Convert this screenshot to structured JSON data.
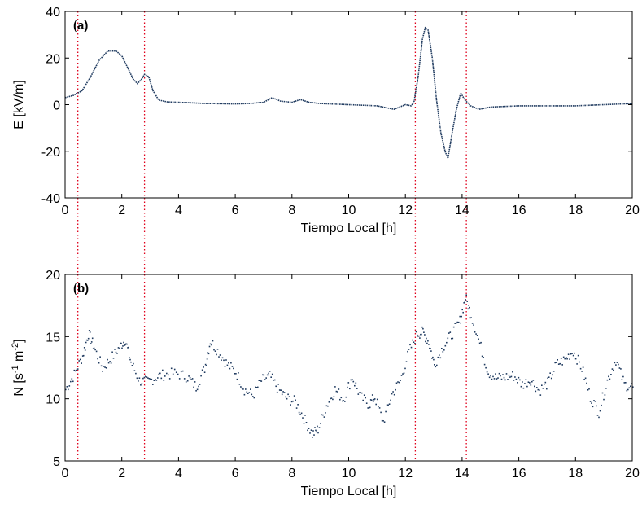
{
  "colors": {
    "data": "#1f3a5f",
    "marker_line": "#e0001b",
    "frame": "#000000"
  },
  "chart_data": [
    {
      "type": "line",
      "panel_label": "(a)",
      "xlabel": "Tiempo Local [h]",
      "ylabel": "E  [kV/m]",
      "xlim": [
        0,
        20
      ],
      "ylim": [
        -40,
        40
      ],
      "xticks": [
        "0",
        "2",
        "4",
        "6",
        "8",
        "10",
        "12",
        "14",
        "16",
        "18",
        "20"
      ],
      "yticks": [
        "-40",
        "-20",
        "0",
        "20",
        "40"
      ],
      "grid": false,
      "series": [
        {
          "x": [
            0,
            0.3,
            0.6,
            0.9,
            1.2,
            1.5,
            1.8,
            2.0,
            2.2,
            2.4,
            2.55,
            2.7,
            2.8,
            2.95,
            3.1,
            3.3,
            3.6,
            4,
            5,
            6,
            6.5,
            7,
            7.3,
            7.6,
            8,
            8.3,
            8.6,
            9,
            10,
            11,
            11.6,
            12,
            12.2,
            12.3,
            12.45,
            12.6,
            12.7,
            12.8,
            12.95,
            13.1,
            13.25,
            13.4,
            13.5,
            13.65,
            13.8,
            13.95,
            14.1,
            14.3,
            14.6,
            15,
            16,
            17,
            18,
            19,
            20
          ],
          "y": [
            3,
            4,
            6,
            12,
            19,
            23,
            23,
            21,
            16,
            11,
            9,
            11,
            13,
            12,
            6,
            2,
            1.2,
            1,
            0.5,
            0.3,
            0.5,
            1,
            3,
            1.5,
            1,
            2.2,
            1,
            0.5,
            0,
            -0.5,
            -2,
            0,
            -0.5,
            1,
            12,
            28,
            33,
            32,
            20,
            2,
            -12,
            -20,
            -23,
            -12,
            -2,
            5,
            2,
            -0.5,
            -2,
            -1,
            -0.5,
            -0.5,
            -0.5,
            0,
            0.5
          ]
        }
      ],
      "vertical_markers": [
        0.45,
        2.8,
        12.35,
        14.15
      ]
    },
    {
      "type": "scatter",
      "panel_label": "(b)",
      "xlabel": "Tiempo Local [h]",
      "ylabel_main": "N  [s",
      "ylabel_exp1": "-1",
      "ylabel_mid": " m",
      "ylabel_exp2": "-2",
      "ylabel_end": "]",
      "xlim": [
        0,
        20
      ],
      "ylim": [
        5,
        20
      ],
      "xticks": [
        "0",
        "2",
        "4",
        "6",
        "8",
        "10",
        "12",
        "14",
        "16",
        "18",
        "20"
      ],
      "yticks": [
        "5",
        "10",
        "15",
        "20"
      ],
      "grid": false,
      "series": [
        {
          "x": [
            0,
            0.3,
            0.6,
            0.8,
            1.0,
            1.3,
            1.6,
            1.9,
            2.1,
            2.3,
            2.6,
            2.9,
            3.2,
            3.5,
            3.9,
            4.3,
            4.6,
            4.9,
            5.1,
            5.4,
            5.7,
            6.0,
            6.3,
            6.6,
            6.9,
            7.2,
            7.5,
            7.8,
            8.1,
            8.4,
            8.7,
            8.9,
            9.2,
            9.5,
            9.8,
            10.1,
            10.4,
            10.7,
            10.9,
            11.2,
            11.5,
            11.8,
            12.1,
            12.4,
            12.6,
            12.8,
            13.0,
            13.3,
            13.6,
            13.9,
            14.1,
            14.3,
            14.6,
            14.9,
            15.2,
            15.5,
            15.8,
            16.1,
            16.4,
            16.7,
            17.0,
            17.3,
            17.6,
            17.9,
            18.2,
            18.5,
            18.8,
            19.1,
            19.4,
            19.7,
            20.0
          ],
          "y": [
            10.8,
            12,
            13.5,
            15.3,
            14.2,
            12.5,
            13.3,
            14.2,
            14.8,
            13,
            11.5,
            11.4,
            11.8,
            12,
            12.1,
            11.8,
            11,
            12.5,
            14.7,
            13.8,
            12.8,
            12.2,
            10.8,
            10.3,
            11.5,
            11.9,
            10.8,
            10.1,
            9.8,
            8.5,
            7.2,
            7.6,
            9.5,
            10.8,
            10,
            11.8,
            10.2,
            9.6,
            10.2,
            8.2,
            10.4,
            11.5,
            13.8,
            15.3,
            15.4,
            14.6,
            12.8,
            14.2,
            15.2,
            16.3,
            18.2,
            16.8,
            14.5,
            12.2,
            11.7,
            11.8,
            11.9,
            11.2,
            11.6,
            10.7,
            11.3,
            12.8,
            13.2,
            13.9,
            12.5,
            10.2,
            9,
            11.5,
            13.2,
            11.2,
            11
          ]
        }
      ],
      "vertical_markers": [
        0.45,
        2.8,
        12.35,
        14.15
      ]
    }
  ]
}
